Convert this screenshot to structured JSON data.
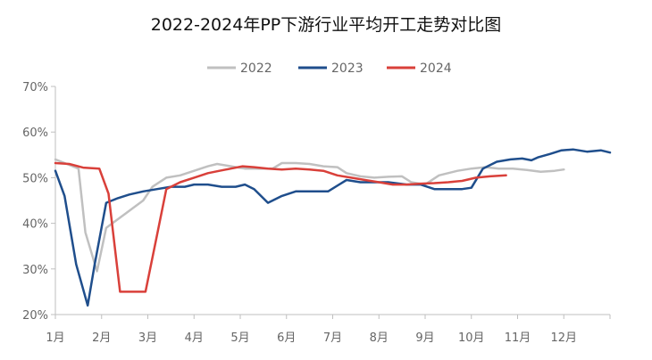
{
  "chart_data": {
    "type": "line",
    "title": "2022-2024年PP下游行业平均开工走势对比图",
    "xlabel": "",
    "ylabel": "",
    "x_categories": [
      "1月",
      "2月",
      "3月",
      "4月",
      "5月",
      "6月",
      "7月",
      "8月",
      "9月",
      "10月",
      "11月",
      "12月"
    ],
    "ylim": [
      20,
      70
    ],
    "yticks": [
      20,
      30,
      40,
      50,
      60,
      70
    ],
    "ytick_labels": [
      "20%",
      "30%",
      "40%",
      "50%",
      "60%",
      "70%"
    ],
    "grid": false,
    "legend_position": "top",
    "series": [
      {
        "name": "2022",
        "color": "#c0c0c0",
        "points": [
          [
            1.0,
            54
          ],
          [
            1.25,
            53
          ],
          [
            1.5,
            52
          ],
          [
            1.65,
            38
          ],
          [
            1.9,
            29.5
          ],
          [
            2.1,
            39
          ],
          [
            2.5,
            42
          ],
          [
            2.9,
            45
          ],
          [
            3.1,
            48
          ],
          [
            3.4,
            50
          ],
          [
            3.7,
            50.5
          ],
          [
            4.0,
            51.5
          ],
          [
            4.3,
            52.5
          ],
          [
            4.5,
            53
          ],
          [
            4.8,
            52.5
          ],
          [
            5.1,
            52
          ],
          [
            5.4,
            52
          ],
          [
            5.7,
            52
          ],
          [
            5.9,
            53.2
          ],
          [
            6.2,
            53.2
          ],
          [
            6.5,
            53
          ],
          [
            6.8,
            52.5
          ],
          [
            7.1,
            52.3
          ],
          [
            7.3,
            51
          ],
          [
            7.6,
            50.3
          ],
          [
            7.9,
            50
          ],
          [
            8.2,
            50.2
          ],
          [
            8.5,
            50.3
          ],
          [
            8.7,
            49
          ],
          [
            9.0,
            48.5
          ],
          [
            9.3,
            50.5
          ],
          [
            9.7,
            51.5
          ],
          [
            10.0,
            52
          ],
          [
            10.3,
            52.3
          ],
          [
            10.6,
            52
          ],
          [
            10.9,
            52
          ],
          [
            11.2,
            51.7
          ],
          [
            11.5,
            51.3
          ],
          [
            11.8,
            51.5
          ],
          [
            12.0,
            51.8
          ]
        ]
      },
      {
        "name": "2023",
        "color": "#1f4e8c",
        "points": [
          [
            1.0,
            51.5
          ],
          [
            1.2,
            46
          ],
          [
            1.45,
            31
          ],
          [
            1.7,
            22
          ],
          [
            1.85,
            31
          ],
          [
            2.1,
            44.5
          ],
          [
            2.35,
            45.5
          ],
          [
            2.6,
            46.3
          ],
          [
            2.9,
            47
          ],
          [
            3.2,
            47.5
          ],
          [
            3.5,
            48
          ],
          [
            3.8,
            48
          ],
          [
            4.0,
            48.5
          ],
          [
            4.3,
            48.5
          ],
          [
            4.6,
            48
          ],
          [
            4.9,
            48
          ],
          [
            5.1,
            48.5
          ],
          [
            5.3,
            47.5
          ],
          [
            5.6,
            44.5
          ],
          [
            5.9,
            46
          ],
          [
            6.2,
            47
          ],
          [
            6.6,
            47
          ],
          [
            6.9,
            47
          ],
          [
            7.3,
            49.5
          ],
          [
            7.6,
            49
          ],
          [
            7.9,
            49
          ],
          [
            8.2,
            49
          ],
          [
            8.6,
            48.5
          ],
          [
            8.9,
            48.5
          ],
          [
            9.2,
            47.5
          ],
          [
            9.5,
            47.5
          ],
          [
            9.8,
            47.5
          ],
          [
            10.0,
            47.8
          ],
          [
            10.25,
            52
          ],
          [
            10.55,
            53.5
          ],
          [
            10.85,
            54
          ],
          [
            11.1,
            54.2
          ],
          [
            11.3,
            53.8
          ],
          [
            11.45,
            54.5
          ],
          [
            11.7,
            55.2
          ],
          [
            11.95,
            56
          ],
          [
            12.2,
            56.2
          ],
          [
            12.5,
            55.7
          ],
          [
            12.8,
            56
          ],
          [
            13.0,
            55.5
          ]
        ]
      },
      {
        "name": "2024",
        "color": "#d9403a",
        "points": [
          [
            1.0,
            53.2
          ],
          [
            1.3,
            53
          ],
          [
            1.6,
            52.2
          ],
          [
            1.95,
            52
          ],
          [
            2.15,
            46.5
          ],
          [
            2.4,
            25
          ],
          [
            2.7,
            25
          ],
          [
            2.95,
            25
          ],
          [
            3.2,
            37.5
          ],
          [
            3.4,
            47.5
          ],
          [
            3.7,
            49
          ],
          [
            4.0,
            50
          ],
          [
            4.3,
            51
          ],
          [
            4.55,
            51.5
          ],
          [
            4.8,
            52
          ],
          [
            5.05,
            52.5
          ],
          [
            5.3,
            52.3
          ],
          [
            5.6,
            52
          ],
          [
            5.9,
            51.8
          ],
          [
            6.2,
            52
          ],
          [
            6.5,
            51.8
          ],
          [
            6.8,
            51.5
          ],
          [
            7.1,
            50.5
          ],
          [
            7.4,
            50
          ],
          [
            7.7,
            49.5
          ],
          [
            8.0,
            49
          ],
          [
            8.3,
            48.5
          ],
          [
            8.6,
            48.5
          ],
          [
            8.9,
            48.7
          ],
          [
            9.2,
            48.8
          ],
          [
            9.5,
            49
          ],
          [
            9.8,
            49.3
          ],
          [
            10.1,
            50
          ],
          [
            10.4,
            50.3
          ],
          [
            10.75,
            50.5
          ]
        ]
      }
    ]
  }
}
